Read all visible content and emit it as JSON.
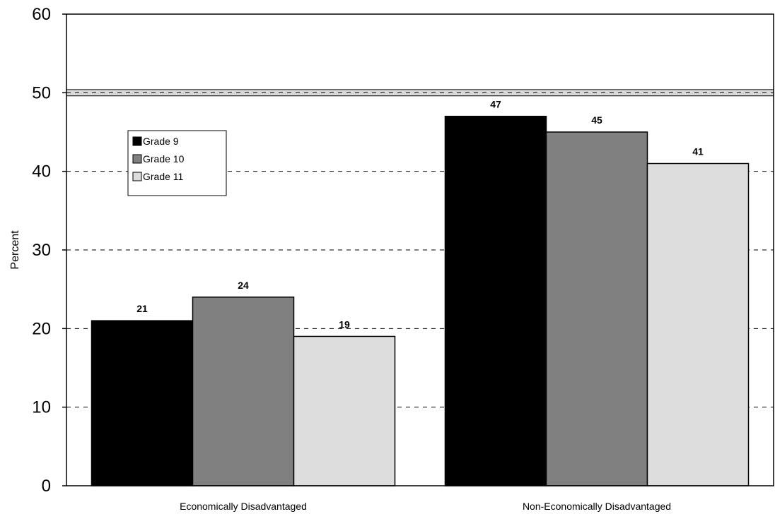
{
  "chart_data": {
    "type": "bar",
    "categories": [
      "Economically Disadvantaged",
      "Non-Economically Disadvantaged"
    ],
    "series": [
      {
        "name": "Grade 9",
        "values": [
          21,
          47
        ],
        "color": "#000000"
      },
      {
        "name": "Grade 10",
        "values": [
          24,
          45
        ],
        "color": "#808080"
      },
      {
        "name": "Grade 11",
        "values": [
          19,
          41
        ],
        "color": "#dddddd"
      }
    ],
    "ylabel": "Percent",
    "ylim": [
      0,
      60
    ],
    "yticks": [
      0,
      10,
      20,
      30,
      40,
      50,
      60
    ],
    "reference_band": [
      49.6,
      50.4
    ],
    "grid": "dashed horizontal",
    "legend_position": "upper-left"
  }
}
